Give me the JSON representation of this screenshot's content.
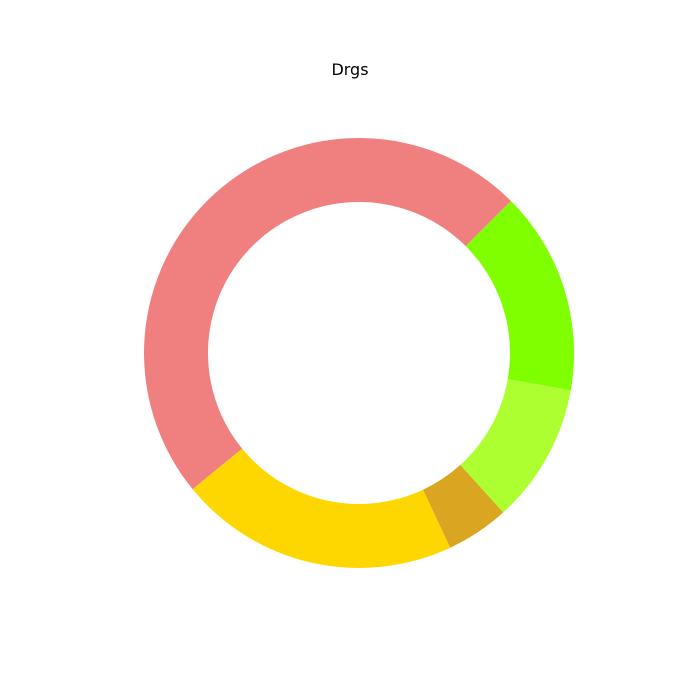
{
  "chart_data": {
    "type": "pie",
    "title": "Drgs",
    "start_angle_deg": 45,
    "direction": "counterclockwise",
    "donut": true,
    "legend": "none",
    "slices": [
      {
        "value": 46.0,
        "color": "#F08080"
      },
      {
        "value": 20.0,
        "color": "#FFD700"
      },
      {
        "value": 4.5,
        "color": "#DAA520"
      },
      {
        "value": 10.0,
        "color": "#ADFF2F"
      },
      {
        "value": 14.5,
        "color": "#7FFF00"
      }
    ]
  }
}
